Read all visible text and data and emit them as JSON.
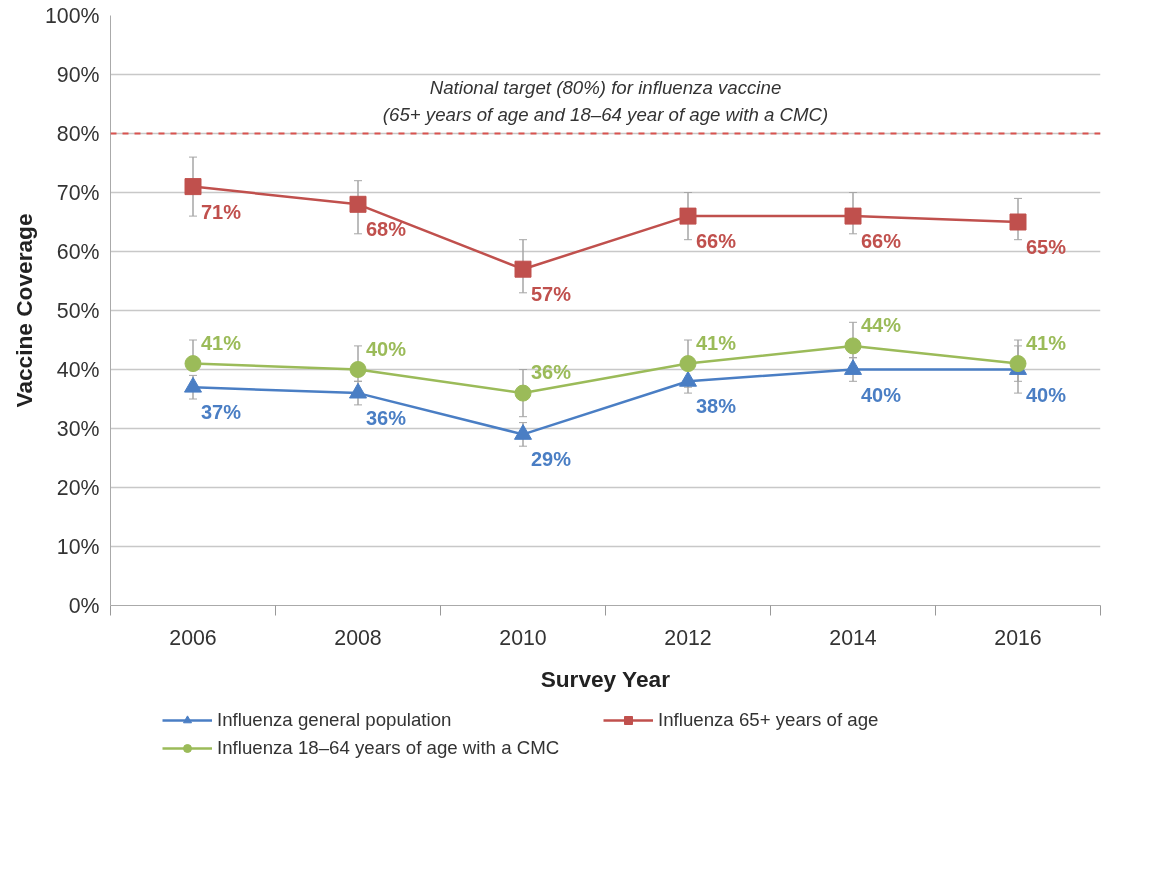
{
  "chart_data": {
    "type": "line",
    "xlabel": "Survey Year",
    "ylabel": "Vaccine Coverage",
    "categories": [
      "2006",
      "2008",
      "2010",
      "2012",
      "2014",
      "2016"
    ],
    "ylim": [
      0,
      100
    ],
    "yticks": [
      {
        "value": 0,
        "label": "0%"
      },
      {
        "value": 10,
        "label": "10%"
      },
      {
        "value": 20,
        "label": "20%"
      },
      {
        "value": 30,
        "label": "30%"
      },
      {
        "value": 40,
        "label": "40%"
      },
      {
        "value": 50,
        "label": "50%"
      },
      {
        "value": 60,
        "label": "60%"
      },
      {
        "value": 70,
        "label": "70%"
      },
      {
        "value": 80,
        "label": "80%"
      },
      {
        "value": 90,
        "label": "90%"
      },
      {
        "value": 100,
        "label": "100%"
      }
    ],
    "grid": "y",
    "legend": "bottom",
    "data_labels": true,
    "line_style": "solid",
    "series": [
      {
        "name": "Influenza general population",
        "color": "#4a7ec4",
        "marker": "triangle",
        "values": [
          37,
          36,
          29,
          38,
          40,
          40
        ],
        "value_labels": [
          "37%",
          "36%",
          "29%",
          "38%",
          "40%",
          "40%"
        ],
        "errors": [
          [
            35,
            39
          ],
          [
            34,
            38
          ],
          [
            27,
            31
          ],
          [
            36,
            40
          ],
          [
            38,
            42
          ],
          [
            36,
            44
          ]
        ]
      },
      {
        "name": "Influenza 65+ years of age",
        "color": "#c0504d",
        "marker": "square",
        "values": [
          71,
          68,
          57,
          66,
          66,
          65
        ],
        "value_labels": [
          "71%",
          "68%",
          "57%",
          "66%",
          "66%",
          "65%"
        ],
        "errors": [
          [
            66,
            76
          ],
          [
            63,
            72
          ],
          [
            53,
            62
          ],
          [
            62,
            70
          ],
          [
            63,
            70
          ],
          [
            62,
            69
          ]
        ]
      },
      {
        "name": "Influenza 18–64 years of age with a CMC",
        "color": "#9bbb59",
        "marker": "circle",
        "values": [
          41,
          40,
          36,
          41,
          44,
          41
        ],
        "value_labels": [
          "41%",
          "40%",
          "36%",
          "41%",
          "44%",
          "41%"
        ],
        "errors": [
          [
            41,
            45
          ],
          [
            38,
            44
          ],
          [
            32,
            40
          ],
          [
            37,
            45
          ],
          [
            42,
            48
          ],
          [
            38,
            45
          ]
        ]
      }
    ],
    "ref_lines": [
      {
        "axis": "y",
        "value": 80,
        "label": "National target (80%) for influenza vaccine\n(65+ years of age and 18–64 year of age with a CMC)",
        "color": "#d9534f",
        "line_style": "dashed"
      }
    ]
  }
}
